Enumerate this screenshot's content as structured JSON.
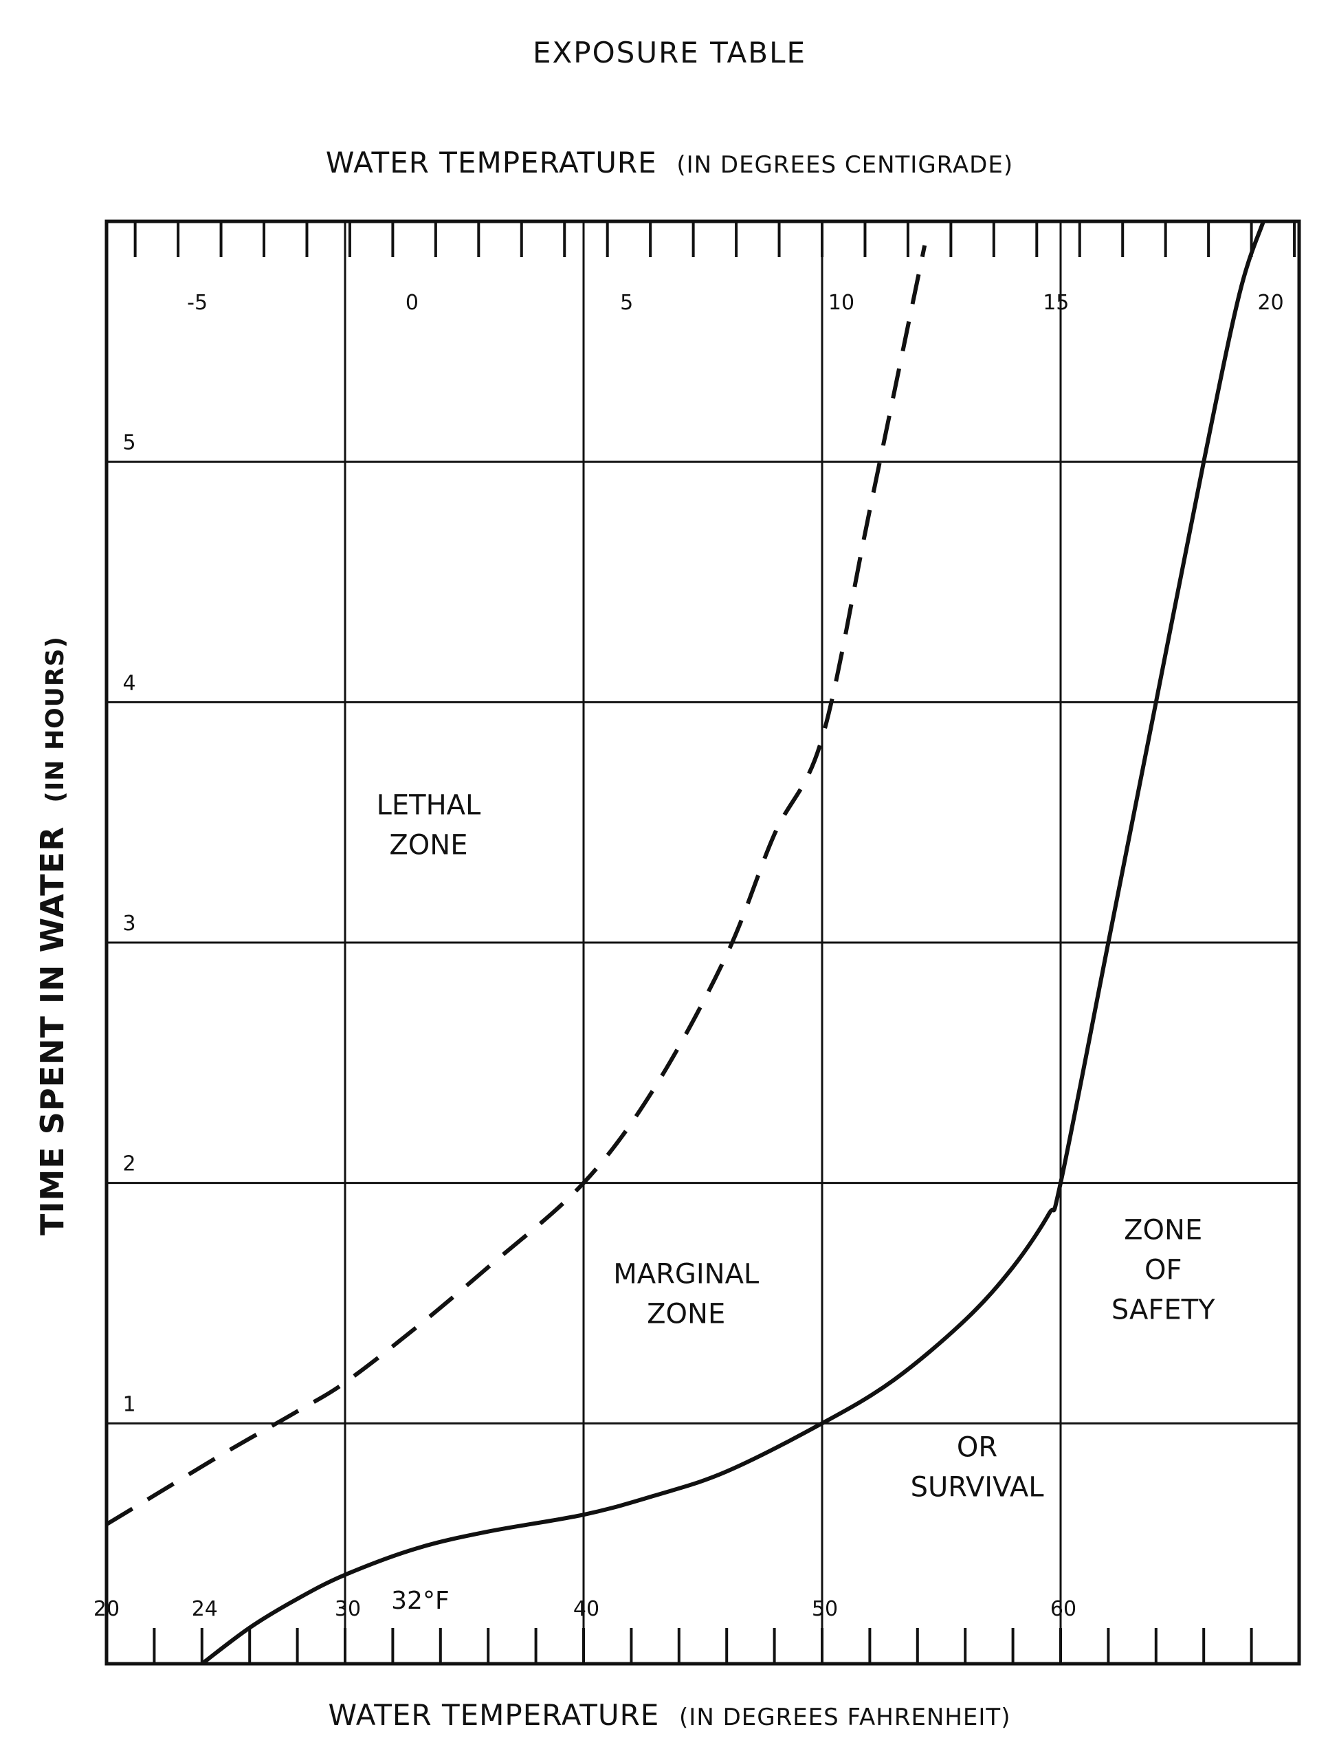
{
  "chart_data": {
    "type": "line",
    "title": "EXPOSURE TABLE",
    "x_top_label": "WATER TEMPERATURE",
    "x_top_unit": "(IN DEGREES CENTIGRADE)",
    "x_bottom_label": "WATER TEMPERATURE",
    "x_bottom_unit": "(IN DEGREES FAHRENHEIT)",
    "ylabel": "TIME SPENT IN WATER",
    "ylabel_unit": "(IN HOURS)",
    "xlim_f": [
      20,
      70
    ],
    "ylim": [
      0,
      6
    ],
    "grid": true,
    "centigrade_ticks": [
      -5,
      0,
      5,
      10,
      15,
      20
    ],
    "centigrade_tick_labels": [
      "-5",
      "0",
      "5",
      "10",
      "15",
      "20"
    ],
    "fahrenheit_ticks": [
      20,
      24,
      30,
      40,
      50,
      60
    ],
    "fahrenheit_tick_labels": [
      "20",
      "24",
      "30",
      "40",
      "50",
      "60"
    ],
    "hour_ticks": [
      1,
      2,
      3,
      4,
      5
    ],
    "hour_tick_labels": [
      "1",
      "2",
      "3",
      "4",
      "5"
    ],
    "marker_32f": "32°F",
    "series": [
      {
        "style": "dashed",
        "x": [
          20,
          22,
          25,
          28,
          30,
          33,
          36,
          40,
          43,
          46,
          48,
          50,
          52,
          54.3
        ],
        "y": [
          0.58,
          0.7,
          0.88,
          1.05,
          1.17,
          1.4,
          1.65,
          2.0,
          2.4,
          2.95,
          3.45,
          3.85,
          4.8,
          5.9
        ]
      },
      {
        "style": "solid",
        "x": [
          24,
          26,
          28,
          30,
          33,
          36,
          40,
          43,
          46,
          50,
          53,
          56,
          58,
          59.5,
          60,
          62,
          64,
          66,
          67.5,
          68.5
        ],
        "y": [
          0,
          0.15,
          0.27,
          0.37,
          0.48,
          0.55,
          0.62,
          0.7,
          0.8,
          1.0,
          1.18,
          1.43,
          1.65,
          1.87,
          2.0,
          3.0,
          4.0,
          5.0,
          5.7,
          6.0
        ]
      }
    ],
    "annotations": [
      {
        "text": [
          "LETHAL",
          "ZONE"
        ],
        "x": 33.5,
        "y": 3.45
      },
      {
        "text": [
          "MARGINAL",
          "ZONE"
        ],
        "x": 44.3,
        "y": 1.5
      },
      {
        "text": [
          "ZONE",
          "OF",
          "SAFETY"
        ],
        "x": 64.3,
        "y": 1.6
      },
      {
        "text": [
          "OR",
          "SURVIVAL"
        ],
        "x": 56.5,
        "y": 0.78
      }
    ]
  }
}
